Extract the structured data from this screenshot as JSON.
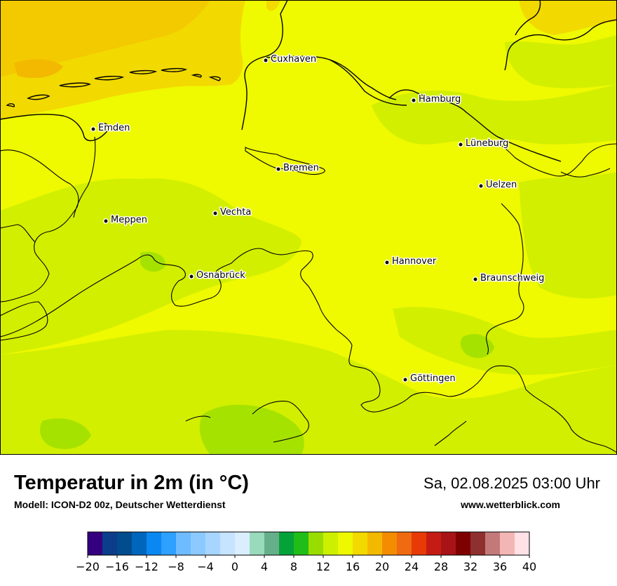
{
  "map": {
    "title": "Temperatur in 2m (in °C)",
    "model": "Modell: ICON-D2 00z, Deutscher Wetterdienst",
    "datetime": "Sa, 02.08.2025 03:00 Uhr",
    "website": "www.wetterblick.com",
    "cities": [
      {
        "id": "cuxhaven",
        "name": "Cuxhaven"
      },
      {
        "id": "hamburg",
        "name": "Hamburg"
      },
      {
        "id": "emden",
        "name": "Emden"
      },
      {
        "id": "lueneburg",
        "name": "Lüneburg"
      },
      {
        "id": "bremen",
        "name": "Bremen"
      },
      {
        "id": "uelzen",
        "name": "Uelzen"
      },
      {
        "id": "vechta",
        "name": "Vechta"
      },
      {
        "id": "meppen",
        "name": "Meppen"
      },
      {
        "id": "hannover",
        "name": "Hannover"
      },
      {
        "id": "osnabrueck",
        "name": "Osnabrück"
      },
      {
        "id": "braunschweig",
        "name": "Braunschweig"
      },
      {
        "id": "goettingen",
        "name": "Göttingen"
      }
    ]
  },
  "legend": {
    "min": -20,
    "max": 40,
    "step": 2,
    "tick_labels": [
      "−20",
      "−16",
      "−12",
      "−8",
      "−4",
      "0",
      "4",
      "8",
      "12",
      "16",
      "20",
      "24",
      "28",
      "32",
      "36",
      "40"
    ],
    "colors": [
      "#34007f",
      "#0b3d8a",
      "#004c8c",
      "#0065bd",
      "#0a88f1",
      "#2ea0ff",
      "#6fbbff",
      "#8cc9ff",
      "#a7d5ff",
      "#c6e3ff",
      "#daeeff",
      "#97dabc",
      "#65b08a",
      "#05a23a",
      "#20bd18",
      "#99dc00",
      "#cdf000",
      "#eef800",
      "#f2d900",
      "#f3b900",
      "#f38c00",
      "#ef6a10",
      "#e83a07",
      "#c41c14",
      "#a81317",
      "#7f0000",
      "#8f3030",
      "#c47979",
      "#f4b6b4",
      "#ffe1e6"
    ]
  }
}
